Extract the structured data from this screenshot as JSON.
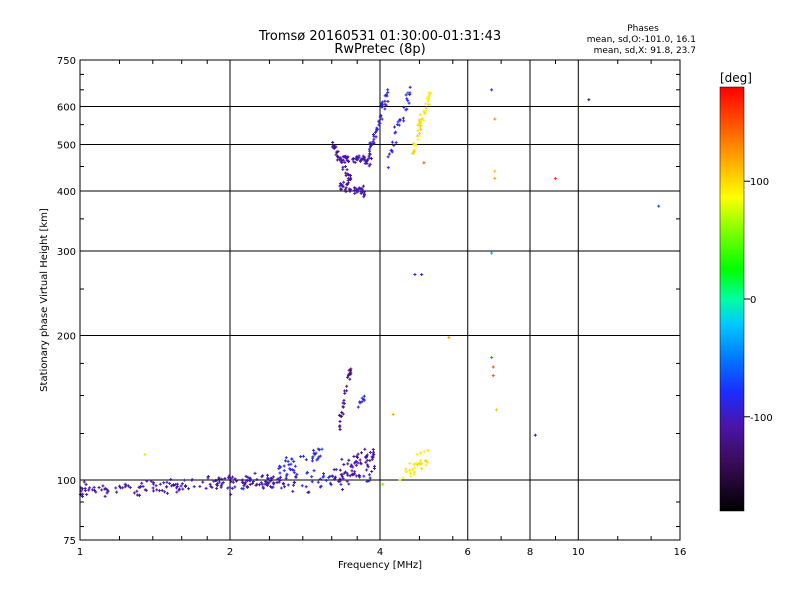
{
  "chart_data": {
    "type": "scatter",
    "title": "Tromsø 20160531 01:30:00-01:31:43",
    "subtitle": "RwPretec (8p)",
    "xlabel": "Frequency [MHz]",
    "ylabel": "Stationary phase Virtual Height [km]",
    "x_scale": "log",
    "y_scale": "log",
    "xlim": [
      1,
      16
    ],
    "ylim": [
      75,
      750
    ],
    "x_ticks": [
      1,
      2,
      4,
      6,
      8,
      10,
      16
    ],
    "x_tick_labels": [
      "1",
      "2",
      "4",
      "6",
      "8",
      "10",
      "16"
    ],
    "y_ticks": [
      75,
      100,
      200,
      300,
      400,
      500,
      600,
      750
    ],
    "y_tick_labels": [
      "75",
      "100",
      "200",
      "300",
      "400",
      "500",
      "600",
      "750"
    ],
    "grid": true,
    "phase_box": {
      "title": "Phases",
      "line_o": "mean, sd,O:-101.0, 16.1",
      "line_x": "mean, sd,X:  91.8, 23.7"
    },
    "colorbar": {
      "label": "[deg]",
      "range": [
        -180,
        180
      ],
      "ticks": [
        100,
        0,
        -100
      ],
      "tick_labels": [
        "100",
        "0",
        "-100"
      ]
    },
    "point_groups": [
      {
        "x_start": 1.0,
        "x_end": 2.6,
        "y_start": 95,
        "y_end": 100,
        "jitter_y": 3,
        "count": 160,
        "phase": -110,
        "phase_sd": 12
      },
      {
        "x_start": 2.0,
        "x_end": 3.9,
        "y_start": 98,
        "y_end": 102,
        "jitter_y": 4,
        "count": 90,
        "phase": -100,
        "phase_sd": 22
      },
      {
        "x_start": 2.5,
        "x_end": 3.1,
        "y_start": 105,
        "y_end": 114,
        "jitter_y": 5,
        "count": 40,
        "phase": -85,
        "phase_sd": 18
      },
      {
        "x_start": 3.3,
        "x_end": 3.9,
        "y_start": 102,
        "y_end": 112,
        "jitter_y": 6,
        "count": 55,
        "phase": -115,
        "phase_sd": 10
      },
      {
        "x_start": 3.3,
        "x_end": 3.5,
        "y_start": 125,
        "y_end": 170,
        "jitter_y": 6,
        "count": 30,
        "phase": -120,
        "phase_sd": 10
      },
      {
        "x_start": 3.55,
        "x_end": 3.75,
        "y_start": 140,
        "y_end": 150,
        "jitter_y": 4,
        "count": 8,
        "phase": -90,
        "phase_sd": 10
      },
      {
        "x_start": 4.35,
        "x_end": 5.0,
        "y_start": 100,
        "y_end": 112,
        "jitter_y": 4,
        "count": 30,
        "phase": 95,
        "phase_sd": 8
      },
      {
        "x_start": 3.2,
        "x_end": 3.5,
        "y_start": 500,
        "y_end": 420,
        "jitter_y": 12,
        "count": 40,
        "phase": -115,
        "phase_sd": 10
      },
      {
        "x_start": 3.3,
        "x_end": 3.75,
        "y_start": 410,
        "y_end": 400,
        "jitter_y": 8,
        "count": 40,
        "phase": -110,
        "phase_sd": 12
      },
      {
        "x_start": 3.35,
        "x_end": 3.85,
        "y_start": 470,
        "y_end": 460,
        "jitter_y": 8,
        "count": 45,
        "phase": -105,
        "phase_sd": 12
      },
      {
        "x_start": 3.8,
        "x_end": 4.15,
        "y_start": 480,
        "y_end": 640,
        "jitter_y": 20,
        "count": 50,
        "phase": -95,
        "phase_sd": 14
      },
      {
        "x_start": 4.15,
        "x_end": 4.6,
        "y_start": 470,
        "y_end": 640,
        "jitter_y": 25,
        "count": 30,
        "phase": -90,
        "phase_sd": 18
      },
      {
        "x_start": 4.65,
        "x_end": 5.05,
        "y_start": 480,
        "y_end": 640,
        "jitter_y": 25,
        "count": 45,
        "phase": 95,
        "phase_sd": 12
      }
    ],
    "points": [
      {
        "x": 1.35,
        "y": 113,
        "phase": 100
      },
      {
        "x": 4.7,
        "y": 268,
        "phase": -85
      },
      {
        "x": 4.85,
        "y": 268,
        "phase": -85
      },
      {
        "x": 5.5,
        "y": 198,
        "phase": 125
      },
      {
        "x": 4.25,
        "y": 137,
        "phase": 120
      },
      {
        "x": 4.05,
        "y": 98,
        "phase": 50
      },
      {
        "x": 6.7,
        "y": 650,
        "phase": -85
      },
      {
        "x": 6.8,
        "y": 565,
        "phase": 130
      },
      {
        "x": 6.8,
        "y": 440,
        "phase": 110
      },
      {
        "x": 6.8,
        "y": 425,
        "phase": 120
      },
      {
        "x": 6.7,
        "y": 297,
        "phase": -30
      },
      {
        "x": 6.7,
        "y": 180,
        "phase": 150
      },
      {
        "x": 6.75,
        "y": 172,
        "phase": 150
      },
      {
        "x": 6.75,
        "y": 165,
        "phase": 150
      },
      {
        "x": 6.85,
        "y": 140,
        "phase": 110
      },
      {
        "x": 8.2,
        "y": 124,
        "phase": -120
      },
      {
        "x": 9.0,
        "y": 425,
        "phase": 150
      },
      {
        "x": 10.5,
        "y": 620,
        "phase": -130
      },
      {
        "x": 14.5,
        "y": 372,
        "phase": -70
      },
      {
        "x": 4.9,
        "y": 458,
        "phase": 150
      }
    ]
  }
}
